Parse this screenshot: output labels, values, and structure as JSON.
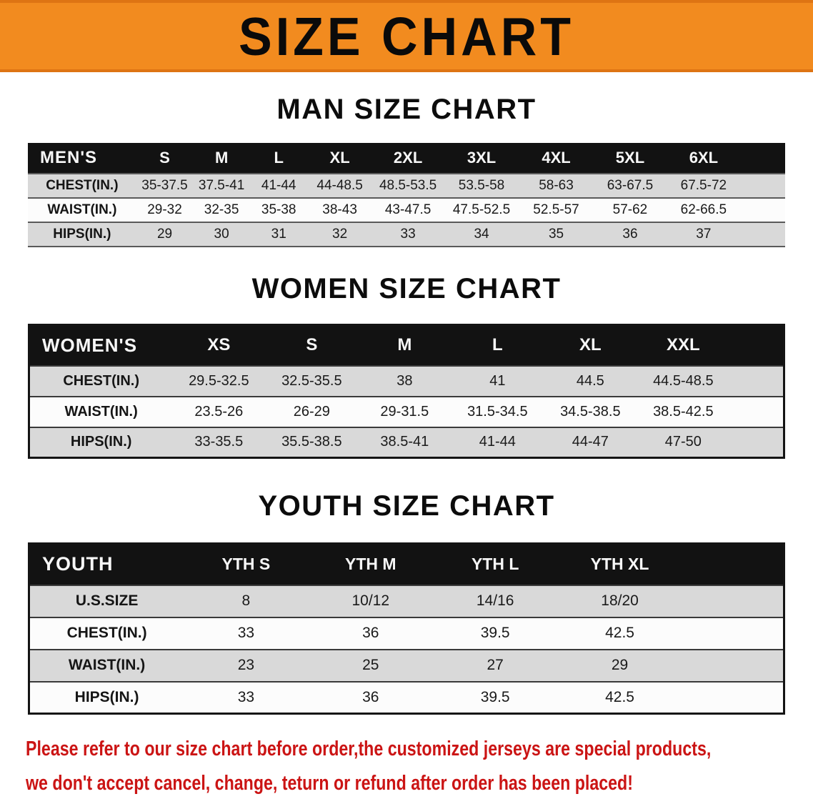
{
  "banner": {
    "title": "SIZE CHART"
  },
  "man": {
    "heading": "MAN SIZE CHART",
    "table": {
      "header": [
        "MEN'S",
        "S",
        "M",
        "L",
        "XL",
        "2XL",
        "3XL",
        "4XL",
        "5XL",
        "6XL"
      ],
      "rows": [
        [
          "CHEST(IN.)",
          "35-37.5",
          "37.5-41",
          "41-44",
          "44-48.5",
          "48.5-53.5",
          "53.5-58",
          "58-63",
          "63-67.5",
          "67.5-72"
        ],
        [
          "WAIST(IN.)",
          "29-32",
          "32-35",
          "35-38",
          "38-43",
          "43-47.5",
          "47.5-52.5",
          "52.5-57",
          "57-62",
          "62-66.5"
        ],
        [
          "HIPS(IN.)",
          "29",
          "30",
          "31",
          "32",
          "33",
          "34",
          "35",
          "36",
          "37"
        ]
      ]
    }
  },
  "women": {
    "heading": "WOMEN SIZE CHART",
    "table": {
      "header": [
        "WOMEN'S",
        "XS",
        "S",
        "M",
        "L",
        "XL",
        "XXL"
      ],
      "rows": [
        [
          "CHEST(IN.)",
          "29.5-32.5",
          "32.5-35.5",
          "38",
          "41",
          "44.5",
          "44.5-48.5"
        ],
        [
          "WAIST(IN.)",
          "23.5-26",
          "26-29",
          "29-31.5",
          "31.5-34.5",
          "34.5-38.5",
          "38.5-42.5"
        ],
        [
          "HIPS(IN.)",
          "33-35.5",
          "35.5-38.5",
          "38.5-41",
          "41-44",
          "44-47",
          "47-50"
        ]
      ]
    }
  },
  "youth": {
    "heading": "YOUTH SIZE CHART",
    "table": {
      "header": [
        "YOUTH",
        "YTH S",
        "YTH M",
        "YTH L",
        "YTH XL"
      ],
      "rows": [
        [
          "U.S.SIZE",
          "8",
          "10/12",
          "14/16",
          "18/20"
        ],
        [
          "CHEST(IN.)",
          "33",
          "36",
          "39.5",
          "42.5"
        ],
        [
          "WAIST(IN.)",
          "23",
          "25",
          "27",
          "29"
        ],
        [
          "HIPS(IN.)",
          "33",
          "36",
          "39.5",
          "42.5"
        ]
      ]
    }
  },
  "disclaimer": {
    "line1": "Please refer to our size chart before order,the customized jerseys are special products,",
    "line2": "we don't accept cancel, change, teturn or refund after order has been placed!"
  },
  "colors": {
    "banner_orange": "#f28b1f",
    "header_black": "#121212",
    "row_gray": "#d9d9d9",
    "row_white": "#fcfcfc",
    "disclaimer_red": "#cb1414"
  }
}
